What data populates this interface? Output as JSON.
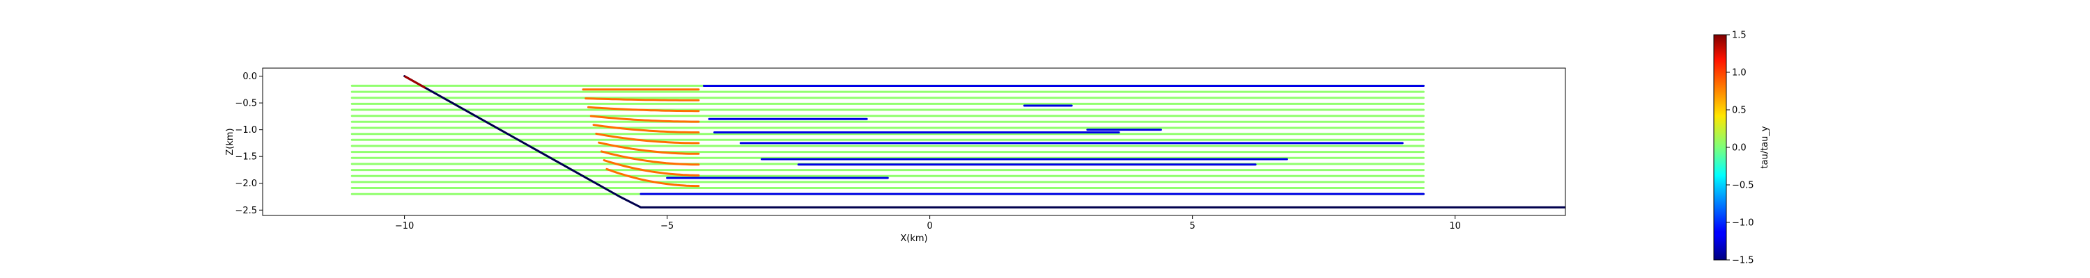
{
  "chart_data": {
    "type": "line",
    "title": "",
    "xlabel": "X(km)",
    "ylabel": "Z(km)",
    "xlim": [
      -12.7,
      12.1
    ],
    "ylim": [
      -2.6,
      0.15
    ],
    "xticks": [
      -10,
      -5,
      0,
      5,
      10
    ],
    "yticks": [
      0.0,
      -0.5,
      -1.0,
      -1.5,
      -2.0,
      -2.5
    ],
    "xtick_labels": [
      "−10",
      "−5",
      "0",
      "5",
      "10"
    ],
    "ytick_labels": [
      "0.0",
      "−0.5",
      "−1.0",
      "−1.5",
      "−2.0",
      "−2.5"
    ],
    "grid": false,
    "colorbar": {
      "label": "tau/tau_y",
      "vmin": -1.5,
      "vmax": 1.5,
      "colormap": "jet",
      "ticks": [
        1.5,
        1.0,
        0.5,
        0.0,
        -0.5,
        -1.0,
        -1.5
      ],
      "tick_labels": [
        "1.5",
        "1.0",
        "0.5",
        "0.0",
        "−0.5",
        "−1.0",
        "−1.5"
      ]
    },
    "fault": {
      "color": "#00004d",
      "x": [
        -10.0,
        -5.9,
        -5.6,
        -5.5,
        12.1
      ],
      "z": [
        0.0,
        -2.25,
        -2.4,
        -2.45,
        -2.45
      ]
    },
    "layers": {
      "count": 19,
      "z_top": -0.18,
      "z_bottom": -2.2,
      "x_start": -11.0,
      "x_end": 9.4,
      "ramp_lower_x": [
        -7.0,
        -4.4
      ],
      "ramp_upper_x": [
        -7.9,
        -6.1
      ],
      "flat_color_value": 0.05,
      "hanging_wall_value": -1.2,
      "bend_zone_value": 0.8
    }
  }
}
